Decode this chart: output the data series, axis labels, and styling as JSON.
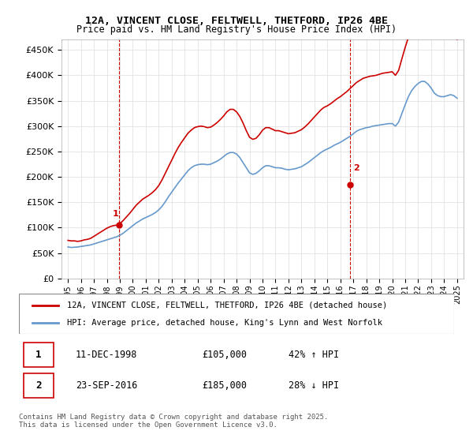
{
  "title_line1": "12A, VINCENT CLOSE, FELTWELL, THETFORD, IP26 4BE",
  "title_line2": "Price paid vs. HM Land Registry's House Price Index (HPI)",
  "legend_line1": "12A, VINCENT CLOSE, FELTWELL, THETFORD, IP26 4BE (detached house)",
  "legend_line2": "HPI: Average price, detached house, King's Lynn and West Norfolk",
  "annotation1_label": "1",
  "annotation1_date": "11-DEC-1998",
  "annotation1_price": "£105,000",
  "annotation1_hpi": "42% ↑ HPI",
  "annotation1_year": 1998.95,
  "annotation1_value": 105000,
  "annotation2_label": "2",
  "annotation2_date": "23-SEP-2016",
  "annotation2_price": "£185,000",
  "annotation2_hpi": "28% ↓ HPI",
  "annotation2_year": 2016.73,
  "annotation2_value": 185000,
  "copyright": "Contains HM Land Registry data © Crown copyright and database right 2025.\nThis data is licensed under the Open Government Licence v3.0.",
  "ylim": [
    0,
    470000
  ],
  "yticks": [
    0,
    50000,
    100000,
    150000,
    200000,
    250000,
    300000,
    350000,
    400000,
    450000
  ],
  "price_color": "#cc0000",
  "hpi_color": "#6699cc",
  "grid_color": "#dddddd",
  "bg_color": "#ffffff",
  "vline_color": "#cc0000",
  "hpi_data": {
    "years": [
      1995.0,
      1995.25,
      1995.5,
      1995.75,
      1996.0,
      1996.25,
      1996.5,
      1996.75,
      1997.0,
      1997.25,
      1997.5,
      1997.75,
      1998.0,
      1998.25,
      1998.5,
      1998.75,
      1999.0,
      1999.25,
      1999.5,
      1999.75,
      2000.0,
      2000.25,
      2000.5,
      2000.75,
      2001.0,
      2001.25,
      2001.5,
      2001.75,
      2002.0,
      2002.25,
      2002.5,
      2002.75,
      2003.0,
      2003.25,
      2003.5,
      2003.75,
      2004.0,
      2004.25,
      2004.5,
      2004.75,
      2005.0,
      2005.25,
      2005.5,
      2005.75,
      2006.0,
      2006.25,
      2006.5,
      2006.75,
      2007.0,
      2007.25,
      2007.5,
      2007.75,
      2008.0,
      2008.25,
      2008.5,
      2008.75,
      2009.0,
      2009.25,
      2009.5,
      2009.75,
      2010.0,
      2010.25,
      2010.5,
      2010.75,
      2011.0,
      2011.25,
      2011.5,
      2011.75,
      2012.0,
      2012.25,
      2012.5,
      2012.75,
      2013.0,
      2013.25,
      2013.5,
      2013.75,
      2014.0,
      2014.25,
      2014.5,
      2014.75,
      2015.0,
      2015.25,
      2015.5,
      2015.75,
      2016.0,
      2016.25,
      2016.5,
      2016.75,
      2017.0,
      2017.25,
      2017.5,
      2017.75,
      2018.0,
      2018.25,
      2018.5,
      2018.75,
      2019.0,
      2019.25,
      2019.5,
      2019.75,
      2020.0,
      2020.25,
      2020.5,
      2020.75,
      2021.0,
      2021.25,
      2021.5,
      2021.75,
      2022.0,
      2022.25,
      2022.5,
      2022.75,
      2023.0,
      2023.25,
      2023.5,
      2023.75,
      2024.0,
      2024.25,
      2024.5,
      2024.75,
      2025.0
    ],
    "values": [
      62000,
      61000,
      61500,
      62000,
      63000,
      64000,
      65000,
      66000,
      68000,
      70000,
      72000,
      74000,
      76000,
      78000,
      80000,
      82000,
      85000,
      89000,
      94000,
      99000,
      104000,
      109000,
      113000,
      117000,
      120000,
      123000,
      126000,
      130000,
      135000,
      142000,
      151000,
      161000,
      170000,
      179000,
      188000,
      196000,
      204000,
      212000,
      218000,
      222000,
      224000,
      225000,
      225000,
      224000,
      225000,
      228000,
      231000,
      235000,
      240000,
      245000,
      248000,
      248000,
      245000,
      238000,
      228000,
      218000,
      208000,
      205000,
      207000,
      212000,
      218000,
      222000,
      222000,
      220000,
      218000,
      218000,
      217000,
      215000,
      214000,
      215000,
      216000,
      218000,
      220000,
      224000,
      228000,
      233000,
      238000,
      243000,
      248000,
      252000,
      255000,
      258000,
      262000,
      265000,
      268000,
      272000,
      276000,
      280000,
      285000,
      290000,
      293000,
      295000,
      297000,
      298000,
      300000,
      301000,
      302000,
      303000,
      304000,
      305000,
      305000,
      300000,
      308000,
      325000,
      342000,
      358000,
      370000,
      378000,
      384000,
      388000,
      388000,
      383000,
      375000,
      365000,
      360000,
      358000,
      358000,
      360000,
      362000,
      360000,
      355000
    ]
  },
  "price_data": {
    "years": [
      1995.0,
      1995.25,
      1995.5,
      1995.75,
      1996.0,
      1996.25,
      1996.5,
      1996.75,
      1997.0,
      1997.25,
      1997.5,
      1997.75,
      1998.0,
      1998.25,
      1998.5,
      1998.75,
      1999.0,
      1999.25,
      1999.5,
      1999.75,
      2000.0,
      2000.25,
      2000.5,
      2000.75,
      2001.0,
      2001.25,
      2001.5,
      2001.75,
      2002.0,
      2002.25,
      2002.5,
      2002.75,
      2003.0,
      2003.25,
      2003.5,
      2003.75,
      2004.0,
      2004.25,
      2004.5,
      2004.75,
      2005.0,
      2005.25,
      2005.5,
      2005.75,
      2006.0,
      2006.25,
      2006.5,
      2006.75,
      2007.0,
      2007.25,
      2007.5,
      2007.75,
      2008.0,
      2008.25,
      2008.5,
      2008.75,
      2009.0,
      2009.25,
      2009.5,
      2009.75,
      2010.0,
      2010.25,
      2010.5,
      2010.75,
      2011.0,
      2011.25,
      2011.5,
      2011.75,
      2012.0,
      2012.25,
      2012.5,
      2012.75,
      2013.0,
      2013.25,
      2013.5,
      2013.75,
      2014.0,
      2014.25,
      2014.5,
      2014.75,
      2015.0,
      2015.25,
      2015.5,
      2015.75,
      2016.0,
      2016.25,
      2016.5,
      2016.75,
      2017.0,
      2017.25,
      2017.5,
      2017.75,
      2018.0,
      2018.25,
      2018.5,
      2018.75,
      2019.0,
      2019.25,
      2019.5,
      2019.75,
      2020.0,
      2020.25,
      2020.5,
      2020.75,
      2021.0,
      2021.25,
      2021.5,
      2021.75,
      2022.0,
      2022.25,
      2022.5,
      2022.75,
      2023.0,
      2023.25,
      2023.5,
      2023.75,
      2024.0,
      2024.25,
      2024.5,
      2024.75,
      2025.0
    ],
    "values": [
      75000,
      74000,
      74000,
      73000,
      74000,
      76000,
      77000,
      79000,
      83000,
      87000,
      91000,
      95000,
      99000,
      102000,
      104000,
      105000,
      108000,
      114000,
      121000,
      128000,
      136000,
      144000,
      150000,
      156000,
      160000,
      164000,
      169000,
      175000,
      183000,
      194000,
      207000,
      220000,
      233000,
      246000,
      258000,
      268000,
      277000,
      286000,
      292000,
      297000,
      299000,
      300000,
      299000,
      297000,
      298000,
      302000,
      307000,
      313000,
      320000,
      328000,
      333000,
      333000,
      328000,
      319000,
      306000,
      291000,
      278000,
      274000,
      276000,
      283000,
      292000,
      297000,
      297000,
      294000,
      291000,
      291000,
      289000,
      287000,
      285000,
      286000,
      287000,
      290000,
      293000,
      298000,
      304000,
      311000,
      318000,
      325000,
      332000,
      337000,
      340000,
      344000,
      349000,
      354000,
      358000,
      363000,
      368000,
      374000,
      380000,
      386000,
      390000,
      394000,
      396000,
      398000,
      399000,
      400000,
      402000,
      404000,
      405000,
      406000,
      407000,
      400000,
      410000,
      433000,
      455000,
      475000,
      492000,
      503000,
      510000,
      516000,
      515000,
      509000,
      498000,
      485000,
      478000,
      475000,
      475000,
      478000,
      481000,
      477000,
      471000
    ]
  }
}
